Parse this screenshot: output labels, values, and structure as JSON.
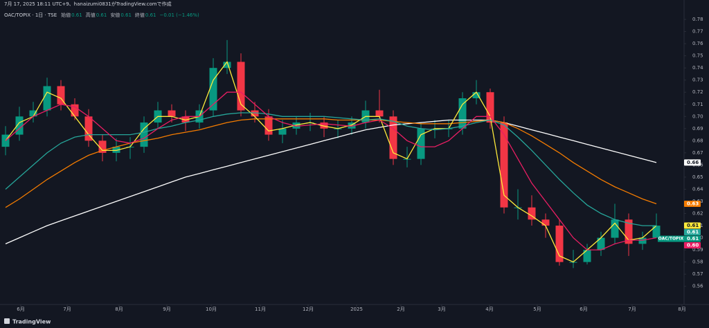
{
  "caption": "7月 17, 2025 18:11 UTC+9、hanaizumi0831がTradingView.comで作成",
  "header": {
    "symbol": "OAC/TOPIX · 1日 · TSE",
    "fields": [
      {
        "label": "始値",
        "value": "0.61"
      },
      {
        "label": "高値",
        "value": "0.61"
      },
      {
        "label": "安値",
        "value": "0.61"
      },
      {
        "label": "終値",
        "value": "0.61"
      }
    ],
    "change": "−0.01 (−1.46%)"
  },
  "footer": {
    "brand": "TradingView"
  },
  "chart_data": {
    "type": "candlestick",
    "categories": [
      null,
      null,
      null,
      null,
      null,
      null,
      null,
      null,
      null,
      null,
      null,
      null,
      null,
      null,
      null,
      null,
      null,
      null,
      null,
      null,
      null,
      null,
      null,
      null,
      null,
      null,
      null,
      null,
      null,
      null,
      null,
      null,
      null,
      null,
      null,
      null,
      null,
      null,
      null,
      null,
      null,
      null,
      null,
      null,
      null,
      null,
      null,
      null
    ],
    "xlim": [
      -0.4,
      49
    ],
    "xticks": [
      {
        "value": 1.1,
        "label": "6月"
      },
      {
        "value": 4.45,
        "label": "7月"
      },
      {
        "value": 8.2,
        "label": "8月"
      },
      {
        "value": 11.65,
        "label": "9月"
      },
      {
        "value": 14.85,
        "label": "10月"
      },
      {
        "value": 18.4,
        "label": "11月"
      },
      {
        "value": 21.85,
        "label": "12月"
      },
      {
        "value": 25.35,
        "label": "2025"
      },
      {
        "value": 28.55,
        "label": "2月"
      },
      {
        "value": 31.5,
        "label": "3月"
      },
      {
        "value": 34.95,
        "label": "4月"
      },
      {
        "value": 38.4,
        "label": "5月"
      },
      {
        "value": 41.75,
        "label": "6月"
      },
      {
        "value": 45.25,
        "label": "7月"
      },
      {
        "value": 48.85,
        "label": "8月"
      }
    ],
    "ylim": [
      0.545,
      0.796
    ],
    "yticks": [
      0.56,
      0.57,
      0.58,
      0.59,
      {
        "value": 0.6,
        "label": "0.60"
      },
      0.61,
      0.62,
      0.63,
      0.64,
      0.65,
      0.66,
      0.67,
      0.68,
      0.69,
      {
        "value": 0.7,
        "label": "0.70"
      },
      0.71,
      0.72,
      0.73,
      0.74,
      0.75,
      0.76,
      0.77,
      0.78
    ],
    "grid": false,
    "up_color": "#089981",
    "down_color": "#f23645",
    "candles": {
      "name": "OAC/TOPIX",
      "badge": "0.61",
      "color": "#089981",
      "open": [
        0.675,
        0.685,
        0.7,
        0.705,
        0.725,
        0.71,
        0.7,
        0.68,
        0.67,
        0.675,
        0.675,
        0.695,
        0.705,
        0.7,
        0.695,
        0.705,
        0.74,
        0.745,
        0.705,
        0.7,
        0.685,
        0.69,
        0.695,
        0.695,
        0.69,
        0.69,
        0.695,
        0.705,
        0.7,
        0.665,
        0.665,
        0.69,
        0.69,
        0.69,
        0.715,
        0.72,
        0.695,
        0.625,
        0.625,
        0.615,
        0.61,
        0.58,
        0.58,
        0.59,
        0.6,
        0.615,
        0.595,
        0.6
      ],
      "high": [
        0.692,
        0.708,
        0.712,
        0.732,
        0.73,
        0.715,
        0.706,
        0.685,
        0.682,
        0.683,
        0.7,
        0.712,
        0.71,
        0.705,
        0.71,
        0.748,
        0.763,
        0.752,
        0.712,
        0.706,
        0.697,
        0.7,
        0.703,
        0.7,
        0.697,
        0.7,
        0.713,
        0.722,
        0.705,
        0.675,
        0.695,
        0.697,
        0.697,
        0.72,
        0.73,
        0.723,
        0.7,
        0.64,
        0.635,
        0.62,
        0.615,
        0.59,
        0.595,
        0.605,
        0.628,
        0.62,
        0.605,
        0.62
      ],
      "low": [
        0.668,
        0.68,
        0.695,
        0.7,
        0.705,
        0.697,
        0.675,
        0.663,
        0.663,
        0.665,
        0.67,
        0.69,
        0.695,
        0.688,
        0.69,
        0.7,
        0.735,
        0.7,
        0.695,
        0.68,
        0.678,
        0.685,
        0.688,
        0.683,
        0.682,
        0.685,
        0.69,
        0.695,
        0.66,
        0.658,
        0.66,
        0.682,
        0.683,
        0.685,
        0.71,
        0.69,
        0.62,
        0.615,
        0.61,
        0.6,
        0.577,
        0.575,
        0.578,
        0.585,
        0.595,
        0.585,
        0.59,
        0.6
      ],
      "close": [
        0.685,
        0.7,
        0.705,
        0.725,
        0.71,
        0.7,
        0.68,
        0.67,
        0.675,
        0.675,
        0.695,
        0.705,
        0.7,
        0.695,
        0.705,
        0.74,
        0.745,
        0.705,
        0.7,
        0.685,
        0.69,
        0.695,
        0.695,
        0.69,
        0.69,
        0.695,
        0.705,
        0.7,
        0.665,
        0.665,
        0.69,
        0.69,
        0.69,
        0.715,
        0.72,
        0.695,
        0.625,
        0.625,
        0.615,
        0.61,
        0.58,
        0.58,
        0.59,
        0.6,
        0.615,
        0.595,
        0.6,
        0.61
      ]
    },
    "series": [
      {
        "color": "#ffffff",
        "badge": "0.66",
        "values": [
          0.595,
          0.6,
          0.605,
          0.61,
          0.614,
          0.618,
          0.622,
          0.626,
          0.63,
          0.634,
          0.638,
          0.642,
          0.646,
          0.65,
          0.653,
          0.656,
          0.659,
          0.662,
          0.665,
          0.668,
          0.671,
          0.674,
          0.677,
          0.68,
          0.683,
          0.686,
          0.689,
          0.691,
          0.693,
          0.694,
          0.695,
          0.696,
          0.697,
          0.697,
          0.697,
          0.697,
          0.695,
          0.692,
          0.689,
          0.686,
          0.683,
          0.68,
          0.677,
          0.674,
          0.671,
          0.668,
          0.665,
          0.662
        ]
      },
      {
        "color": "#f57c00",
        "badge": "0.63",
        "values": [
          0.625,
          0.632,
          0.64,
          0.648,
          0.655,
          0.662,
          0.668,
          0.672,
          0.675,
          0.678,
          0.68,
          0.682,
          0.685,
          0.687,
          0.689,
          0.692,
          0.695,
          0.697,
          0.698,
          0.698,
          0.698,
          0.698,
          0.698,
          0.698,
          0.697,
          0.697,
          0.697,
          0.697,
          0.696,
          0.695,
          0.694,
          0.694,
          0.694,
          0.695,
          0.696,
          0.697,
          0.695,
          0.69,
          0.684,
          0.677,
          0.67,
          0.662,
          0.655,
          0.648,
          0.642,
          0.637,
          0.632,
          0.628
        ]
      },
      {
        "color": "#ffeb3b",
        "badge": "0.61",
        "values": [
          0.68,
          0.695,
          0.7,
          0.72,
          0.715,
          0.7,
          0.685,
          0.672,
          0.672,
          0.675,
          0.69,
          0.7,
          0.7,
          0.697,
          0.7,
          0.73,
          0.745,
          0.71,
          0.7,
          0.688,
          0.69,
          0.693,
          0.695,
          0.692,
          0.69,
          0.693,
          0.7,
          0.7,
          0.67,
          0.665,
          0.685,
          0.69,
          0.69,
          0.71,
          0.72,
          0.7,
          0.635,
          0.625,
          0.618,
          0.61,
          0.585,
          0.58,
          0.59,
          0.6,
          0.612,
          0.598,
          0.6,
          0.61
        ]
      },
      {
        "color": "#26a69a",
        "badge": "0.61",
        "values": [
          0.64,
          0.65,
          0.66,
          0.67,
          0.678,
          0.683,
          0.685,
          0.685,
          0.685,
          0.685,
          0.687,
          0.69,
          0.692,
          0.695,
          0.697,
          0.7,
          0.702,
          0.703,
          0.703,
          0.702,
          0.7,
          0.7,
          0.7,
          0.7,
          0.699,
          0.698,
          0.697,
          0.698,
          0.696,
          0.692,
          0.69,
          0.689,
          0.69,
          0.692,
          0.695,
          0.697,
          0.693,
          0.683,
          0.672,
          0.66,
          0.648,
          0.637,
          0.627,
          0.62,
          0.615,
          0.612,
          0.61,
          0.61
        ]
      },
      {
        "color": "#e91e63",
        "badge": "0.60",
        "values": [
          0.68,
          0.69,
          0.7,
          0.705,
          0.71,
          0.708,
          0.7,
          0.69,
          0.68,
          0.678,
          0.682,
          0.69,
          0.697,
          0.7,
          0.7,
          0.71,
          0.72,
          0.72,
          0.71,
          0.7,
          0.695,
          0.692,
          0.693,
          0.694,
          0.693,
          0.692,
          0.695,
          0.697,
          0.69,
          0.68,
          0.675,
          0.675,
          0.68,
          0.69,
          0.7,
          0.7,
          0.685,
          0.665,
          0.645,
          0.63,
          0.615,
          0.6,
          0.59,
          0.59,
          0.595,
          0.598,
          0.598,
          0.6
        ]
      }
    ]
  }
}
